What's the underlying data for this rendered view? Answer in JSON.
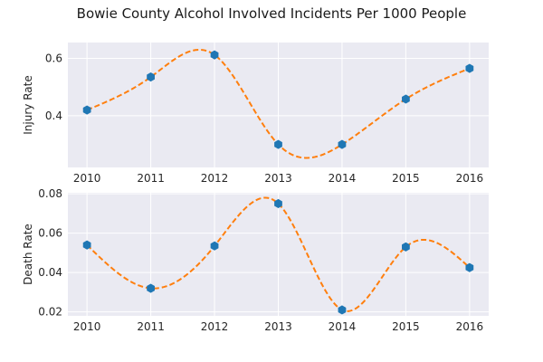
{
  "chart_data": {
    "title": "Bowie County Alcohol Involved Incidents Per 1000 People",
    "type": "line",
    "panels": [
      {
        "name": "injury",
        "ylabel": "Injury Rate",
        "x": [
          2010,
          2011,
          2012,
          2013,
          2014,
          2015,
          2016
        ],
        "values": [
          0.42,
          0.535,
          0.612,
          0.3,
          0.3,
          0.458,
          0.565
        ],
        "ylim": [
          0.22,
          0.655
        ],
        "yticks": [
          0.4,
          0.6
        ],
        "ytick_labels": [
          "0.4",
          "0.6"
        ],
        "xlim": [
          2009.7,
          2016.3
        ],
        "xticks": [
          2010,
          2011,
          2012,
          2013,
          2014,
          2015,
          2016
        ],
        "xtick_labels": [
          "2010",
          "2011",
          "2012",
          "2013",
          "2014",
          "2015",
          "2016"
        ],
        "grid": true
      },
      {
        "name": "death",
        "ylabel": "Death Rate",
        "x": [
          2010,
          2011,
          2012,
          2013,
          2014,
          2015,
          2016
        ],
        "values": [
          0.054,
          0.032,
          0.0535,
          0.075,
          0.021,
          0.053,
          0.0425
        ],
        "ylim": [
          0.018,
          0.0805
        ],
        "yticks": [
          0.02,
          0.04,
          0.06,
          0.08
        ],
        "ytick_labels": [
          "0.02",
          "0.04",
          "0.06",
          "0.08"
        ],
        "xlim": [
          2009.7,
          2016.3
        ],
        "xticks": [
          2010,
          2011,
          2012,
          2013,
          2014,
          2015,
          2016
        ],
        "xtick_labels": [
          "2010",
          "2011",
          "2012",
          "2013",
          "2014",
          "2015",
          "2016"
        ],
        "grid": true
      }
    ],
    "colors": {
      "background": "#EAEAF2",
      "grid": "#FFFFFF",
      "marker": "#1F77B4",
      "curve": "#FF7F0E"
    },
    "markers": "hexagon",
    "curve_style": "dashed smooth interpolation"
  }
}
